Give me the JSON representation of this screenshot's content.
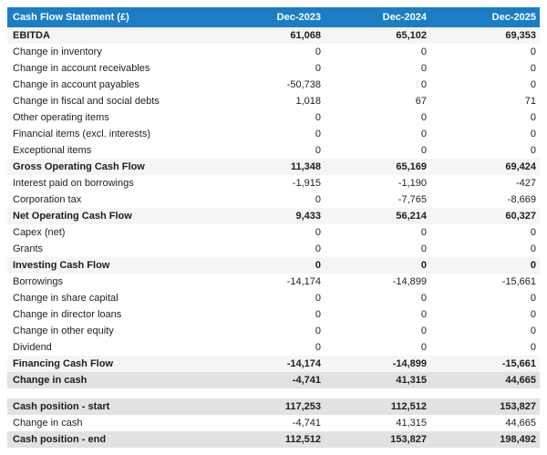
{
  "accent_color": "#1b7ec4",
  "subtotal_row_color": "#f6f5f5",
  "total_row_color": "#e3e1e1",
  "table": {
    "title": "Cash Flow Statement (£)",
    "columns": [
      "Dec-2023",
      "Dec-2024",
      "Dec-2025"
    ],
    "rows": [
      {
        "label": "EBITDA",
        "values": [
          "61,068",
          "65,102",
          "69,353"
        ],
        "style": "subtotal"
      },
      {
        "label": "Change in inventory",
        "values": [
          "0",
          "0",
          "0"
        ],
        "style": "normal"
      },
      {
        "label": "Change in account receivables",
        "values": [
          "0",
          "0",
          "0"
        ],
        "style": "normal"
      },
      {
        "label": "Change in account payables",
        "values": [
          "-50,738",
          "0",
          "0"
        ],
        "style": "normal"
      },
      {
        "label": "Change in fiscal and social debts",
        "values": [
          "1,018",
          "67",
          "71"
        ],
        "style": "normal"
      },
      {
        "label": "Other operating items",
        "values": [
          "0",
          "0",
          "0"
        ],
        "style": "normal"
      },
      {
        "label": "Financial items (excl. interests)",
        "values": [
          "0",
          "0",
          "0"
        ],
        "style": "normal"
      },
      {
        "label": "Exceptional items",
        "values": [
          "0",
          "0",
          "0"
        ],
        "style": "normal"
      },
      {
        "label": "Gross Operating Cash Flow",
        "values": [
          "11,348",
          "65,169",
          "69,424"
        ],
        "style": "subtotal"
      },
      {
        "label": "Interest paid on borrowings",
        "values": [
          "-1,915",
          "-1,190",
          "-427"
        ],
        "style": "normal"
      },
      {
        "label": "Corporation tax",
        "values": [
          "0",
          "-7,765",
          "-8,669"
        ],
        "style": "normal"
      },
      {
        "label": "Net Operating Cash Flow",
        "values": [
          "9,433",
          "56,214",
          "60,327"
        ],
        "style": "subtotal"
      },
      {
        "label": "Capex (net)",
        "values": [
          "0",
          "0",
          "0"
        ],
        "style": "normal"
      },
      {
        "label": "Grants",
        "values": [
          "0",
          "0",
          "0"
        ],
        "style": "normal"
      },
      {
        "label": "Investing Cash Flow",
        "values": [
          "0",
          "0",
          "0"
        ],
        "style": "subtotal"
      },
      {
        "label": "Borrowings",
        "values": [
          "-14,174",
          "-14,899",
          "-15,661"
        ],
        "style": "normal"
      },
      {
        "label": "Change in share capital",
        "values": [
          "0",
          "0",
          "0"
        ],
        "style": "normal"
      },
      {
        "label": "Change in director loans",
        "values": [
          "0",
          "0",
          "0"
        ],
        "style": "normal"
      },
      {
        "label": "Change in other equity",
        "values": [
          "0",
          "0",
          "0"
        ],
        "style": "normal"
      },
      {
        "label": "Dividend",
        "values": [
          "0",
          "0",
          "0"
        ],
        "style": "normal"
      },
      {
        "label": "Financing Cash Flow",
        "values": [
          "-14,174",
          "-14,899",
          "-15,661"
        ],
        "style": "subtotal"
      },
      {
        "label": "Change in cash",
        "values": [
          "-4,741",
          "41,315",
          "44,665"
        ],
        "style": "total"
      }
    ],
    "summary_rows": [
      {
        "label": "Cash position - start",
        "values": [
          "117,253",
          "112,512",
          "153,827"
        ],
        "style": "total"
      },
      {
        "label": "Change in cash",
        "values": [
          "-4,741",
          "41,315",
          "44,665"
        ],
        "style": "normal"
      },
      {
        "label": "Cash position - end",
        "values": [
          "112,512",
          "153,827",
          "198,492"
        ],
        "style": "total"
      }
    ]
  }
}
